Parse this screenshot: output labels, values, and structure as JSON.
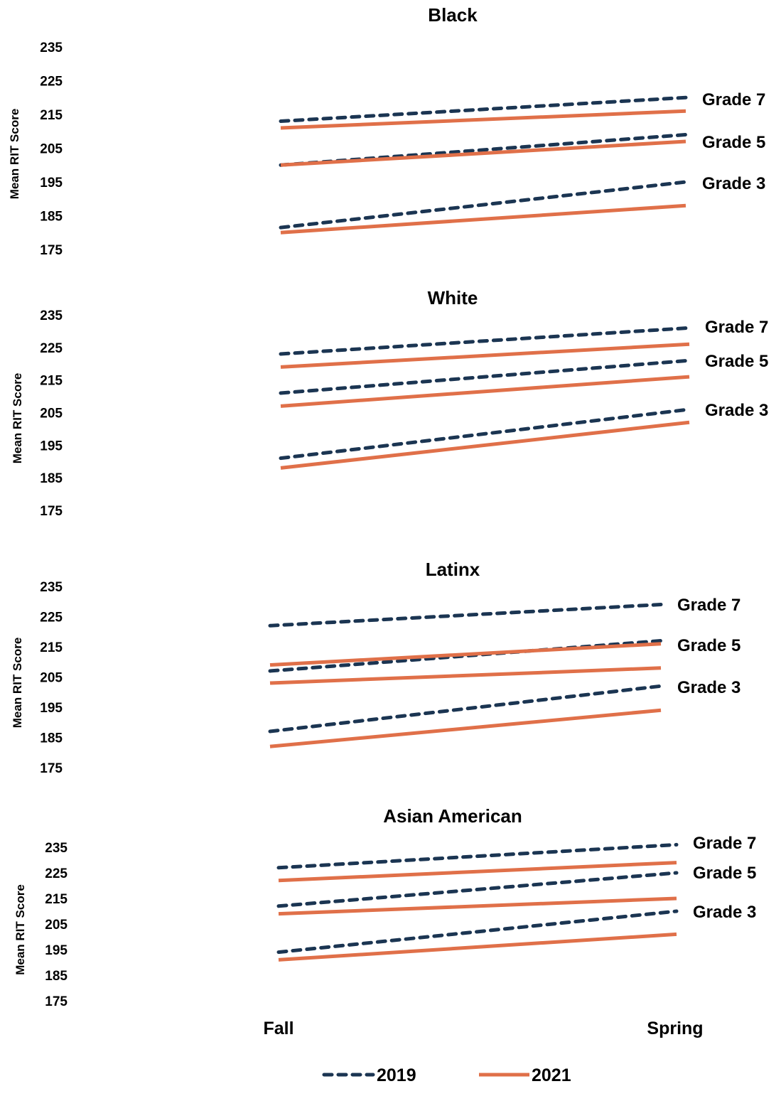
{
  "chart_data": {
    "type": "line",
    "x": [
      "Fall",
      "Spring"
    ],
    "ylabel": "Mean RIT Score",
    "yticks": [
      175,
      185,
      195,
      205,
      215,
      225,
      235
    ],
    "ylim": [
      175,
      235
    ],
    "legend": {
      "placement": "bottom-center",
      "entries": [
        {
          "label": "2019",
          "style": "dashed",
          "color": "#1b3552"
        },
        {
          "label": "2021",
          "style": "solid",
          "color": "#e07049"
        }
      ]
    },
    "colors": {
      "y2019": "#1b3552",
      "y2021": "#e07049"
    },
    "panels": [
      {
        "title": "Black",
        "series": [
          {
            "grade": "Grade 7",
            "year": "2019",
            "values": [
              213,
              220
            ]
          },
          {
            "grade": "Grade 7",
            "year": "2021",
            "values": [
              211,
              216
            ]
          },
          {
            "grade": "Grade 5",
            "year": "2019",
            "values": [
              200,
              209
            ]
          },
          {
            "grade": "Grade 5",
            "year": "2021",
            "values": [
              200,
              207
            ]
          },
          {
            "grade": "Grade 3",
            "year": "2019",
            "values": [
              181.5,
              195
            ]
          },
          {
            "grade": "Grade 3",
            "year": "2021",
            "values": [
              180,
              188
            ]
          }
        ],
        "grade_labels": [
          "Grade 7",
          "Grade 5",
          "Grade 3"
        ]
      },
      {
        "title": "White",
        "series": [
          {
            "grade": "Grade 7",
            "year": "2019",
            "values": [
              223,
              231
            ]
          },
          {
            "grade": "Grade 7",
            "year": "2021",
            "values": [
              219,
              226
            ]
          },
          {
            "grade": "Grade 5",
            "year": "2019",
            "values": [
              211,
              221
            ]
          },
          {
            "grade": "Grade 5",
            "year": "2021",
            "values": [
              207,
              216
            ]
          },
          {
            "grade": "Grade 3",
            "year": "2019",
            "values": [
              191,
              206
            ]
          },
          {
            "grade": "Grade 3",
            "year": "2021",
            "values": [
              188,
              202
            ]
          }
        ],
        "grade_labels": [
          "Grade 7",
          "Grade 5",
          "Grade 3"
        ]
      },
      {
        "title": "Latinx",
        "series": [
          {
            "grade": "Grade 7",
            "year": "2019",
            "values": [
              222,
              229
            ]
          },
          {
            "grade": "Grade 5",
            "year": "2019",
            "values": [
              207,
              217
            ]
          },
          {
            "grade": "Grade 5",
            "year": "2021",
            "values": [
              209,
              216
            ]
          },
          {
            "grade": "Grade 5",
            "year": "2021",
            "values": [
              203,
              208
            ]
          },
          {
            "grade": "Grade 3",
            "year": "2019",
            "values": [
              187,
              202
            ]
          },
          {
            "grade": "Grade 3",
            "year": "2021",
            "values": [
              182,
              194
            ]
          }
        ],
        "grade_labels": [
          "Grade 7",
          "Grade 5",
          "Grade 3"
        ]
      },
      {
        "title": "Asian American",
        "series": [
          {
            "grade": "Grade 7",
            "year": "2019",
            "values": [
              227,
              236
            ]
          },
          {
            "grade": "Grade 7",
            "year": "2021",
            "values": [
              222,
              229
            ]
          },
          {
            "grade": "Grade 5",
            "year": "2019",
            "values": [
              212,
              225
            ]
          },
          {
            "grade": "Grade 5",
            "year": "2021",
            "values": [
              209,
              215
            ]
          },
          {
            "grade": "Grade 3",
            "year": "2019",
            "values": [
              194,
              210
            ]
          },
          {
            "grade": "Grade 3",
            "year": "2021",
            "values": [
              191,
              201
            ]
          }
        ],
        "grade_labels": [
          "Grade 7",
          "Grade 5",
          "Grade 3"
        ]
      }
    ]
  }
}
